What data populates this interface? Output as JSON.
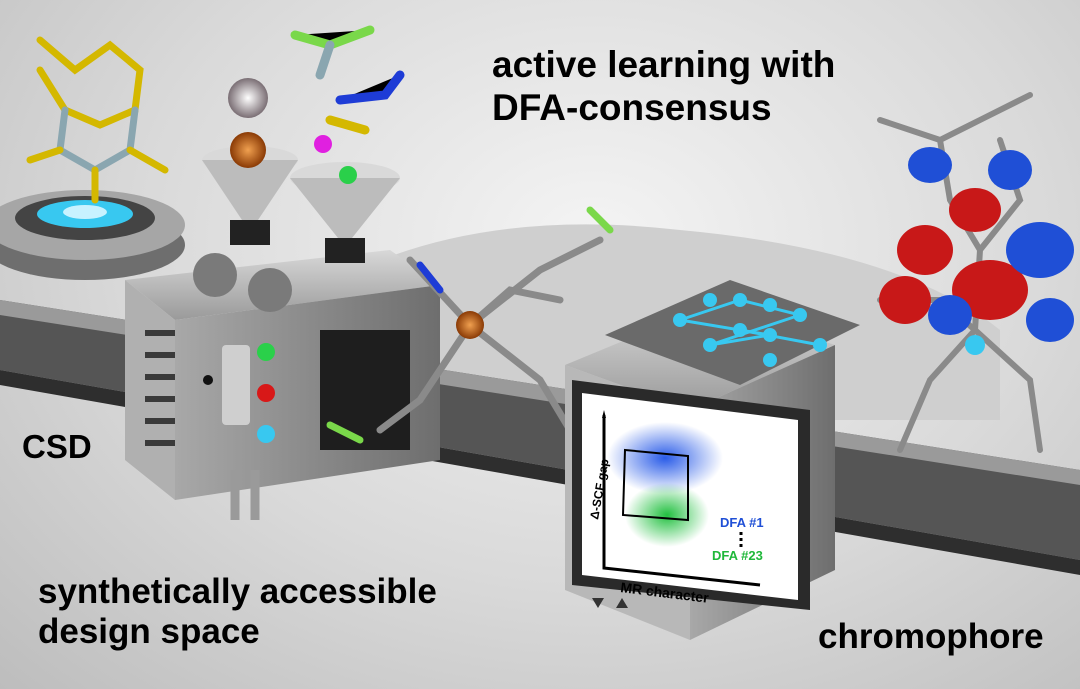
{
  "labels": {
    "headline_line1": "active learning with",
    "headline_line2": "DFA-consensus",
    "csd": "CSD",
    "design_line1": "synthetically accessible",
    "design_line2": "design space",
    "chromophore": "chromophore"
  },
  "plot": {
    "ylabel": "Δ-SCF gap",
    "xlabel": "MR character",
    "legend_top": "DFA #1",
    "legend_bottom": "DFA #23"
  },
  "colors": {
    "blue": "#1f4fd6",
    "green": "#1fb83a",
    "cyan": "#38c8f0",
    "red": "#c81818",
    "machine": "#8c8c8c"
  }
}
